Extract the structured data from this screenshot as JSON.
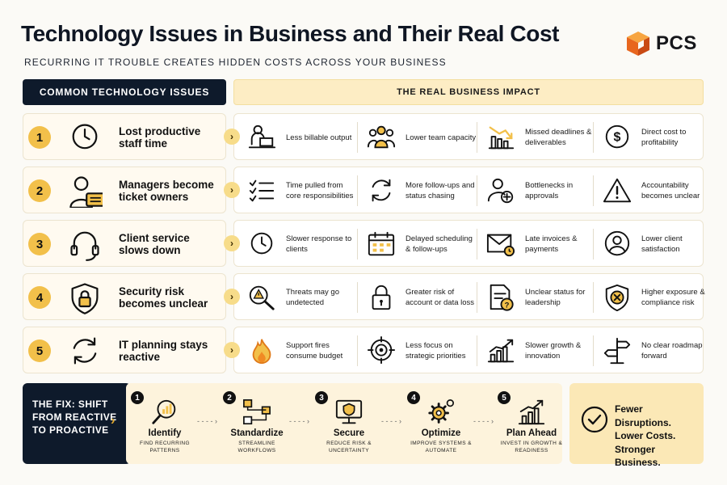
{
  "header": {
    "title": "Technology Issues in Business and Their Real Cost",
    "subtitle": "RECURRING IT TROUBLE CREATES HIDDEN COSTS ACROSS YOUR BUSINESS",
    "logo_text": "PCS"
  },
  "columns": {
    "left": "COMMON TECHNOLOGY ISSUES",
    "right": "THE REAL BUSINESS IMPACT"
  },
  "colors": {
    "navy": "#0e1a2b",
    "accent": "#f2c04a",
    "cream": "#fdedc4",
    "logo_orange": "#f08a24"
  },
  "rows": [
    {
      "num": "1",
      "icon": "clock-icon",
      "label": "Lost productive staff time",
      "impacts": [
        {
          "icon": "person-laptop-icon",
          "label": "Less billable output"
        },
        {
          "icon": "team-icon",
          "label": "Lower team capacity"
        },
        {
          "icon": "declining-chart-icon",
          "label": "Missed deadlines & deliverables"
        },
        {
          "icon": "dollar-coin-icon",
          "label": "Direct cost to profitability"
        }
      ]
    },
    {
      "num": "2",
      "icon": "manager-ticket-icon",
      "label": "Managers become ticket owners",
      "impacts": [
        {
          "icon": "checklist-icon",
          "label": "Time pulled from core responsibilities"
        },
        {
          "icon": "refresh-icon",
          "label": "More follow-ups and status chasing"
        },
        {
          "icon": "person-add-icon",
          "label": "Bottlenecks in approvals"
        },
        {
          "icon": "warning-triangle-icon",
          "label": "Accountability becomes unclear"
        }
      ]
    },
    {
      "num": "3",
      "icon": "headset-icon",
      "label": "Client service slows down",
      "impacts": [
        {
          "icon": "clock-icon",
          "label": "Slower response to clients"
        },
        {
          "icon": "calendar-icon",
          "label": "Delayed scheduling & follow-ups"
        },
        {
          "icon": "envelope-clock-icon",
          "label": "Late invoices & payments"
        },
        {
          "icon": "user-circle-icon",
          "label": "Lower client satisfaction"
        }
      ]
    },
    {
      "num": "4",
      "icon": "shield-lock-icon",
      "label": "Security risk becomes unclear",
      "impacts": [
        {
          "icon": "magnifier-warning-icon",
          "label": "Threats may go undetected"
        },
        {
          "icon": "padlock-icon",
          "label": "Greater risk of account or data loss"
        },
        {
          "icon": "document-question-icon",
          "label": "Unclear status for leadership"
        },
        {
          "icon": "shield-x-icon",
          "label": "Higher exposure & compliance risk"
        }
      ]
    },
    {
      "num": "5",
      "icon": "cycle-arrows-icon",
      "label": "IT planning stays reactive",
      "impacts": [
        {
          "icon": "fire-icon",
          "label": "Support fires consume budget"
        },
        {
          "icon": "target-icon",
          "label": "Less focus on strategic priorities"
        },
        {
          "icon": "growth-chart-icon",
          "label": "Slower growth & innovation"
        },
        {
          "icon": "signpost-icon",
          "label": "No clear roadmap forward"
        }
      ]
    }
  ],
  "fix": {
    "label": "THE FIX: SHIFT FROM REACTIVE TO PROACTIVE",
    "steps": [
      {
        "num": "1",
        "icon": "search-chart-icon",
        "title": "Identify",
        "sub": "FIND RECURRING PATTERNS"
      },
      {
        "num": "2",
        "icon": "workflow-icon",
        "title": "Standardize",
        "sub": "STREAMLINE WORKFLOWS"
      },
      {
        "num": "3",
        "icon": "monitor-shield-icon",
        "title": "Secure",
        "sub": "REDUCE RISK & UNCERTAINTY"
      },
      {
        "num": "4",
        "icon": "gears-icon",
        "title": "Optimize",
        "sub": "IMPROVE SYSTEMS & AUTOMATE"
      },
      {
        "num": "5",
        "icon": "growth-bars-icon",
        "title": "Plan Ahead",
        "sub": "INVEST IN GROWTH & READINESS"
      }
    ]
  },
  "result": {
    "icon": "check-circle-icon",
    "lines": [
      "Fewer Disruptions.",
      "Lower Costs.",
      "Stronger Business."
    ]
  }
}
